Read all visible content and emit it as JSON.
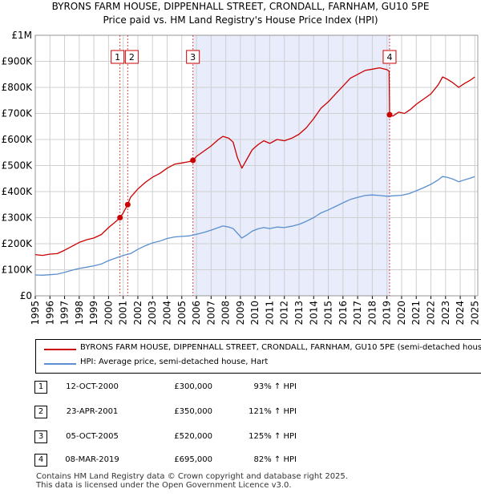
{
  "title_line1": "BYRONS FARM HOUSE, DIPPENHALL STREET, CRONDALL, FARNHAM, GU10 5PE",
  "title_line2": "Price paid vs. HM Land Registry's House Price Index (HPI)",
  "chart_data": {
    "type": "line",
    "title": "BYRONS FARM HOUSE, DIPPENHALL STREET, CRONDALL, FARNHAM, GU10 5PE — Price paid vs. HM Land Registry's House Price Index (HPI)",
    "xlabel": "",
    "ylabel": "",
    "xlim": [
      1995,
      2025.2
    ],
    "ylim": [
      0,
      1000000
    ],
    "grid": true,
    "legend_position": "below-chart",
    "y_ticks": [
      {
        "value": 0,
        "label": "£0"
      },
      {
        "value": 100000,
        "label": "£100K"
      },
      {
        "value": 200000,
        "label": "£200K"
      },
      {
        "value": 300000,
        "label": "£300K"
      },
      {
        "value": 400000,
        "label": "£400K"
      },
      {
        "value": 500000,
        "label": "£500K"
      },
      {
        "value": 600000,
        "label": "£600K"
      },
      {
        "value": 700000,
        "label": "£700K"
      },
      {
        "value": 800000,
        "label": "£800K"
      },
      {
        "value": 900000,
        "label": "£900K"
      },
      {
        "value": 1000000,
        "label": "£1M"
      }
    ],
    "x_ticks": [
      "1995",
      "1996",
      "1997",
      "1998",
      "1999",
      "2000",
      "2001",
      "2002",
      "2003",
      "2004",
      "2005",
      "2006",
      "2007",
      "2008",
      "2009",
      "2010",
      "2011",
      "2012",
      "2013",
      "2014",
      "2015",
      "2016",
      "2017",
      "2018",
      "2019",
      "2020",
      "2021",
      "2022",
      "2023",
      "2024",
      "2025"
    ],
    "shaded_region": {
      "from": 2005.76,
      "to": 2019.18,
      "color": "#e8ecfb"
    },
    "series": [
      {
        "name": "BYRONS FARM HOUSE, DIPPENHALL STREET, CRONDALL, FARNHAM, GU10 5PE (semi-detached house)",
        "color": "#cc0000",
        "points": [
          [
            1995.0,
            158000
          ],
          [
            1995.5,
            155000
          ],
          [
            1996.0,
            160000
          ],
          [
            1996.5,
            162000
          ],
          [
            1997.0,
            175000
          ],
          [
            1997.5,
            190000
          ],
          [
            1998.0,
            205000
          ],
          [
            1998.5,
            215000
          ],
          [
            1999.0,
            222000
          ],
          [
            1999.5,
            235000
          ],
          [
            2000.0,
            262000
          ],
          [
            2000.5,
            285000
          ],
          [
            2000.78,
            300000
          ],
          [
            2001.0,
            318000
          ],
          [
            2001.31,
            350000
          ],
          [
            2001.5,
            378000
          ],
          [
            2002.0,
            410000
          ],
          [
            2002.5,
            435000
          ],
          [
            2003.0,
            455000
          ],
          [
            2003.5,
            470000
          ],
          [
            2004.0,
            490000
          ],
          [
            2004.5,
            505000
          ],
          [
            2005.0,
            510000
          ],
          [
            2005.5,
            515000
          ],
          [
            2005.76,
            520000
          ],
          [
            2006.0,
            535000
          ],
          [
            2006.5,
            555000
          ],
          [
            2007.0,
            575000
          ],
          [
            2007.5,
            600000
          ],
          [
            2007.8,
            612000
          ],
          [
            2008.2,
            605000
          ],
          [
            2008.5,
            590000
          ],
          [
            2008.8,
            530000
          ],
          [
            2009.1,
            490000
          ],
          [
            2009.4,
            520000
          ],
          [
            2009.8,
            560000
          ],
          [
            2010.2,
            580000
          ],
          [
            2010.6,
            595000
          ],
          [
            2011.0,
            585000
          ],
          [
            2011.5,
            600000
          ],
          [
            2012.0,
            595000
          ],
          [
            2012.5,
            605000
          ],
          [
            2013.0,
            620000
          ],
          [
            2013.5,
            645000
          ],
          [
            2014.0,
            680000
          ],
          [
            2014.5,
            720000
          ],
          [
            2015.0,
            745000
          ],
          [
            2015.5,
            775000
          ],
          [
            2016.0,
            805000
          ],
          [
            2016.5,
            835000
          ],
          [
            2017.0,
            850000
          ],
          [
            2017.5,
            865000
          ],
          [
            2018.0,
            870000
          ],
          [
            2018.5,
            875000
          ],
          [
            2019.0,
            868000
          ],
          [
            2019.15,
            862000
          ],
          [
            2019.18,
            695000
          ],
          [
            2019.4,
            690000
          ],
          [
            2019.8,
            705000
          ],
          [
            2020.2,
            700000
          ],
          [
            2020.6,
            715000
          ],
          [
            2021.0,
            735000
          ],
          [
            2021.5,
            755000
          ],
          [
            2022.0,
            775000
          ],
          [
            2022.5,
            810000
          ],
          [
            2022.8,
            840000
          ],
          [
            2023.1,
            832000
          ],
          [
            2023.5,
            818000
          ],
          [
            2023.9,
            800000
          ],
          [
            2024.3,
            815000
          ],
          [
            2024.7,
            828000
          ],
          [
            2025.0,
            840000
          ]
        ]
      },
      {
        "name": "HPI: Average price, semi-detached house, Hart",
        "color": "#5b8fd0",
        "points": [
          [
            1995.0,
            80000
          ],
          [
            1995.5,
            79000
          ],
          [
            1996.0,
            81000
          ],
          [
            1996.5,
            83000
          ],
          [
            1997.0,
            90000
          ],
          [
            1997.5,
            98000
          ],
          [
            1998.0,
            105000
          ],
          [
            1998.5,
            110000
          ],
          [
            1999.0,
            115000
          ],
          [
            1999.5,
            122000
          ],
          [
            2000.0,
            135000
          ],
          [
            2000.5,
            145000
          ],
          [
            2001.0,
            155000
          ],
          [
            2001.5,
            162000
          ],
          [
            2002.0,
            178000
          ],
          [
            2002.5,
            192000
          ],
          [
            2003.0,
            203000
          ],
          [
            2003.5,
            210000
          ],
          [
            2004.0,
            220000
          ],
          [
            2004.5,
            226000
          ],
          [
            2005.0,
            228000
          ],
          [
            2005.5,
            230000
          ],
          [
            2006.0,
            236000
          ],
          [
            2006.5,
            243000
          ],
          [
            2007.0,
            252000
          ],
          [
            2007.5,
            262000
          ],
          [
            2007.8,
            268000
          ],
          [
            2008.2,
            264000
          ],
          [
            2008.5,
            258000
          ],
          [
            2008.8,
            240000
          ],
          [
            2009.1,
            222000
          ],
          [
            2009.4,
            232000
          ],
          [
            2009.8,
            248000
          ],
          [
            2010.2,
            257000
          ],
          [
            2010.6,
            262000
          ],
          [
            2011.0,
            258000
          ],
          [
            2011.5,
            264000
          ],
          [
            2012.0,
            262000
          ],
          [
            2012.5,
            267000
          ],
          [
            2013.0,
            274000
          ],
          [
            2013.5,
            286000
          ],
          [
            2014.0,
            300000
          ],
          [
            2014.5,
            318000
          ],
          [
            2015.0,
            330000
          ],
          [
            2015.5,
            343000
          ],
          [
            2016.0,
            357000
          ],
          [
            2016.5,
            370000
          ],
          [
            2017.0,
            378000
          ],
          [
            2017.5,
            385000
          ],
          [
            2018.0,
            387000
          ],
          [
            2018.5,
            385000
          ],
          [
            2019.0,
            382000
          ],
          [
            2019.5,
            384000
          ],
          [
            2020.0,
            386000
          ],
          [
            2020.5,
            392000
          ],
          [
            2021.0,
            403000
          ],
          [
            2021.5,
            415000
          ],
          [
            2022.0,
            428000
          ],
          [
            2022.5,
            445000
          ],
          [
            2022.8,
            458000
          ],
          [
            2023.1,
            455000
          ],
          [
            2023.5,
            448000
          ],
          [
            2023.9,
            438000
          ],
          [
            2024.3,
            445000
          ],
          [
            2024.7,
            452000
          ],
          [
            2025.0,
            458000
          ]
        ]
      }
    ],
    "markers": [
      {
        "label": "1",
        "x": 2000.78,
        "y": 300000
      },
      {
        "label": "2",
        "x": 2001.31,
        "y": 350000
      },
      {
        "label": "3",
        "x": 2005.76,
        "y": 520000
      },
      {
        "label": "4",
        "x": 2019.18,
        "y": 695000
      }
    ]
  },
  "legend": [
    {
      "label": "BYRONS FARM HOUSE, DIPPENHALL STREET, CRONDALL, FARNHAM, GU10 5PE (semi-detached house)",
      "color": "#cc0000"
    },
    {
      "label": "HPI: Average price, semi-detached house, Hart",
      "color": "#5b8fd0"
    }
  ],
  "transactions": [
    {
      "num": "1",
      "date": "12-OCT-2000",
      "price": "£300,000",
      "hpi": "93% ↑ HPI"
    },
    {
      "num": "2",
      "date": "23-APR-2001",
      "price": "£350,000",
      "hpi": "121% ↑ HPI"
    },
    {
      "num": "3",
      "date": "05-OCT-2005",
      "price": "£520,000",
      "hpi": "125% ↑ HPI"
    },
    {
      "num": "4",
      "date": "08-MAR-2019",
      "price": "£695,000",
      "hpi": "82% ↑ HPI"
    }
  ],
  "footer_line1": "Contains HM Land Registry data © Crown copyright and database right 2025.",
  "footer_line2": "This data is licensed under the Open Government Licence v3.0."
}
